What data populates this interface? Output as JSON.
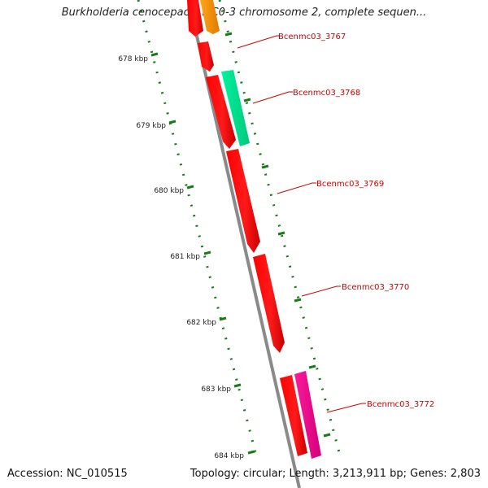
{
  "title": "Burkholderia cenocepacia MC0-3 chromosome 2, complete sequen...",
  "accession": "Accession: NC_010515",
  "summary": "Topology: circular; Length: 3,213,911 bp; Genes: 2,803",
  "ruler_labels": [
    "678 kbp",
    "679 kbp",
    "680 kbp",
    "681 kbp",
    "682 kbp",
    "683 kbp",
    "684 kbp"
  ],
  "gene_labels": [
    "Bcenmc03_3767",
    "Bcenmc03_3768",
    "Bcenmc03_3769",
    "Bcenmc03_3770",
    "Bcenmc03_3772"
  ],
  "colors": {
    "backbone": "#8a8a8a",
    "cds": "#ff0000",
    "cds_alt_green": "#00f5a0",
    "cds_alt_pink": "#ff1a9a",
    "cds_alt_orange": "#ff9a1a",
    "tick": "#1a7a1a",
    "label": "#cc0000"
  }
}
